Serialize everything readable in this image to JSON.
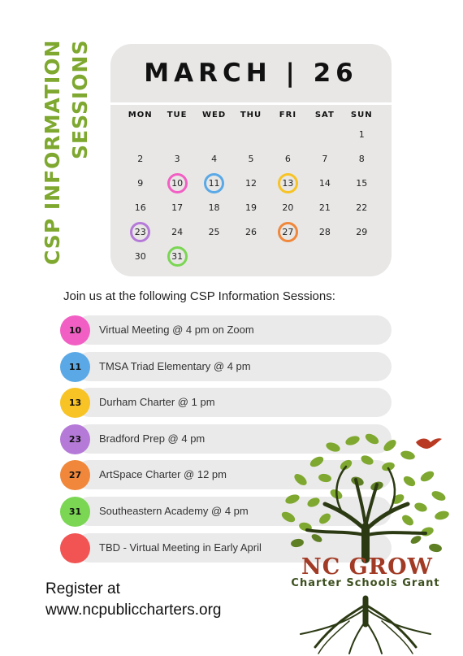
{
  "side_title": {
    "line1": "CSP INFORMATION",
    "line2": "SESSIONS"
  },
  "calendar": {
    "title": "MARCH | 26",
    "weekdays": [
      "MON",
      "TUE",
      "WED",
      "THU",
      "FRI",
      "SAT",
      "SUN"
    ],
    "days": [
      "",
      "",
      "",
      "",
      "",
      "",
      "1",
      "2",
      "3",
      "4",
      "5",
      "6",
      "7",
      "8",
      "9",
      "10",
      "11",
      "12",
      "13",
      "14",
      "15",
      "16",
      "17",
      "18",
      "19",
      "20",
      "21",
      "22",
      "23",
      "24",
      "25",
      "26",
      "27",
      "28",
      "29",
      "30",
      "31",
      "",
      "",
      "",
      "",
      ""
    ],
    "highlights": {
      "10": "#f25fc4",
      "11": "#5aa9e6",
      "13": "#f7c325",
      "23": "#b57ad8",
      "27": "#f0873a",
      "31": "#7ad653"
    }
  },
  "intro": "Join us at the following CSP Information Sessions:",
  "sessions": [
    {
      "day": "10",
      "text": "Virtual Meeting @ 4 pm on Zoom",
      "color": "#f25fc4"
    },
    {
      "day": "11",
      "text": "TMSA Triad Elementary @ 4 pm",
      "color": "#5aa9e6"
    },
    {
      "day": "13",
      "text": "Durham Charter @ 1 pm",
      "color": "#f7c325"
    },
    {
      "day": "23",
      "text": "Bradford Prep @ 4 pm",
      "color": "#b57ad8"
    },
    {
      "day": "27",
      "text": "ArtSpace Charter @ 12 pm",
      "color": "#f0873a"
    },
    {
      "day": "31",
      "text": "Southeastern Academy @ 4 pm",
      "color": "#7ad653"
    },
    {
      "day": "",
      "text": "TBD - Virtual Meeting in Early April",
      "color": "#f25454"
    }
  ],
  "register": {
    "line1": "Register at",
    "line2": "www.ncpubliccharters.org"
  },
  "logo": {
    "name": "NC GROW",
    "subtitle": "Charter Schools Grant"
  },
  "colors": {
    "accent_green": "#7ea82f",
    "logo_red": "#a23b26",
    "calendar_bg": "#e8e7e6"
  }
}
